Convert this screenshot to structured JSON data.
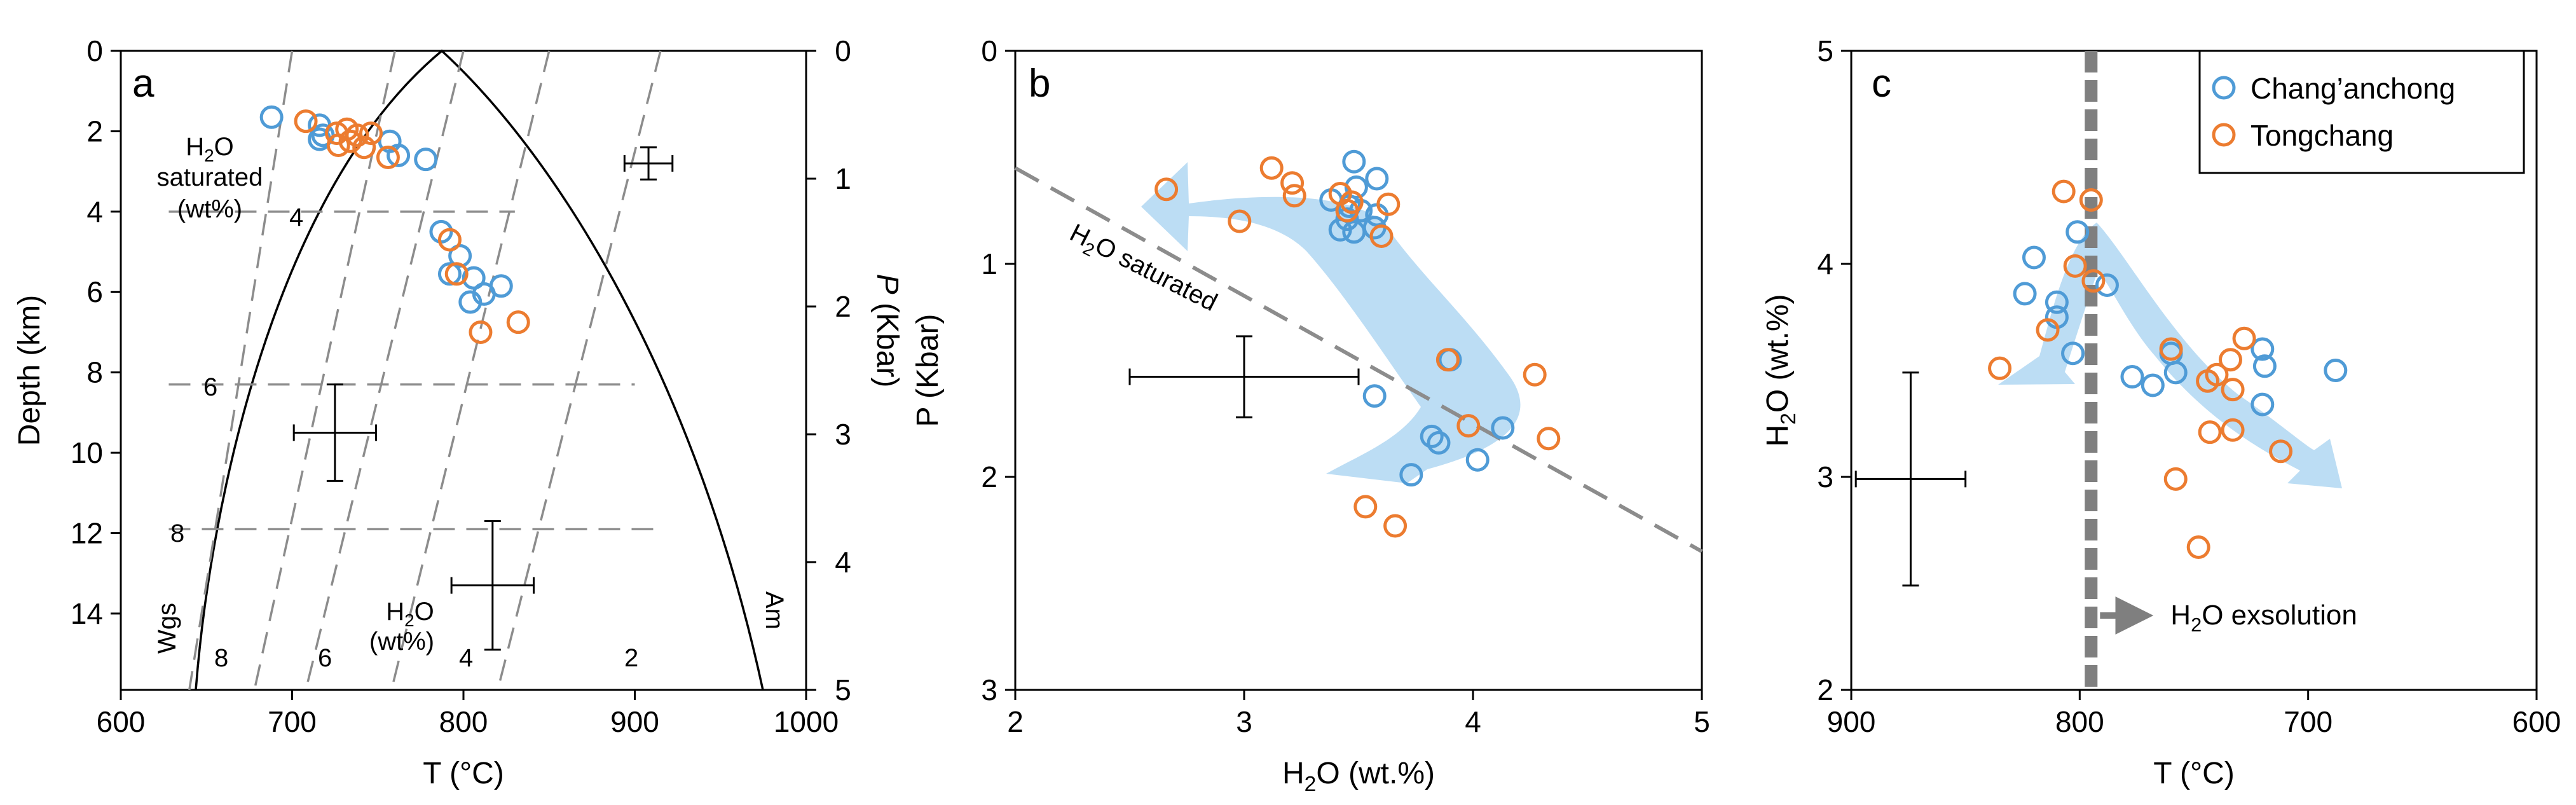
{
  "colors": {
    "blue": "#4F9BD6",
    "orange": "#EC7C30",
    "arrow": "#BCDDF4",
    "grey": "#8C8C8C"
  },
  "chart_data": [
    {
      "type": "scatter",
      "panel": "a",
      "xlabel": "T (°C)",
      "ylabel_left": "Depth (km)",
      "ylabel_right": [
        "P",
        " (Kbar)"
      ],
      "xlim": [
        600,
        1000
      ],
      "ylim_depth": [
        0,
        15.9
      ],
      "ylim_pressure": [
        0,
        5
      ],
      "x_ticks": [
        "600",
        "700",
        "800",
        "900",
        "1000"
      ],
      "y_ticks_left": [
        "0",
        "2",
        "4",
        "6",
        "8",
        "10",
        "12",
        "14"
      ],
      "y_ticks_right": [
        "0",
        "1",
        "2",
        "3",
        "4",
        "5"
      ],
      "annotations": {
        "h2o_saturated": [
          "H",
          "2",
          "O",
          "saturated",
          "(wt%)"
        ],
        "h2o_wt": [
          "H",
          "2",
          "O",
          "(wt%)"
        ],
        "wgs": "Wgs",
        "am": "Am",
        "iso_left": [
          "4",
          "6",
          "8"
        ],
        "iso_bottom": [
          "8",
          "6",
          "4",
          "2"
        ]
      },
      "isobars": [
        {
          "depth": 4.0,
          "x": [
            628,
            830
          ]
        },
        {
          "depth": 8.3,
          "x": [
            628,
            900
          ]
        },
        {
          "depth": 11.9,
          "x": [
            628,
            915
          ]
        }
      ],
      "isopleths": [
        {
          "x": [
            700,
            640
          ]
        },
        {
          "x": [
            760,
            678
          ]
        },
        {
          "x": [
            800,
            708
          ]
        },
        {
          "x": [
            850,
            758
          ]
        },
        {
          "x": [
            915,
            820
          ]
        }
      ],
      "error_bars": [
        {
          "x": 908,
          "y": 2.8,
          "dx": 14,
          "dy": 0.4
        },
        {
          "x": 725,
          "y": 9.5,
          "dx": 24,
          "dy": 1.2
        },
        {
          "x": 817,
          "y": 13.3,
          "dx": 24,
          "dy": 1.6
        }
      ],
      "series": [
        {
          "name": "Chang'anchong",
          "points": [
            [
              688,
              1.65
            ],
            [
              716,
              1.85
            ],
            [
              718,
              2.1
            ],
            [
              716,
              2.2
            ],
            [
              757,
              2.25
            ],
            [
              762,
              2.6
            ],
            [
              778,
              2.7
            ],
            [
              787,
              4.5
            ],
            [
              798,
              5.1
            ],
            [
              792,
              5.55
            ],
            [
              806,
              5.65
            ],
            [
              804,
              6.25
            ],
            [
              812,
              6.05
            ],
            [
              822,
              5.85
            ]
          ]
        },
        {
          "name": "Tongchang",
          "points": [
            [
              708,
              1.75
            ],
            [
              726,
              2.05
            ],
            [
              732,
              1.95
            ],
            [
              746,
              2.05
            ],
            [
              734,
              2.25
            ],
            [
              738,
              2.1
            ],
            [
              727,
              2.35
            ],
            [
              742,
              2.4
            ],
            [
              756,
              2.65
            ],
            [
              792,
              4.7
            ],
            [
              796,
              5.55
            ],
            [
              810,
              7.0
            ],
            [
              832,
              6.75
            ]
          ]
        }
      ]
    },
    {
      "type": "scatter",
      "panel": "b",
      "xlabel": [
        "H",
        "2",
        "O (wt.%)"
      ],
      "ylabel": "P (Kbar)",
      "xlim": [
        2,
        5
      ],
      "ylim": [
        3,
        0
      ],
      "x_ticks": [
        "2",
        "3",
        "4",
        "5"
      ],
      "y_ticks": [
        "0",
        "1",
        "2",
        "3"
      ],
      "annotations": {
        "h2o_saturated": [
          "H",
          "2",
          "O saturated"
        ]
      },
      "saturation_line": {
        "x": [
          2,
          5
        ],
        "y": [
          0.55,
          2.35
        ]
      },
      "error_bar": {
        "x": 3.0,
        "y": 1.53,
        "dx": 0.5,
        "dy": 0.19
      },
      "series": [
        {
          "name": "Chang'anchong",
          "points": [
            [
              3.48,
              0.52
            ],
            [
              3.58,
              0.6
            ],
            [
              3.49,
              0.64
            ],
            [
              3.38,
              0.7
            ],
            [
              3.46,
              0.73
            ],
            [
              3.45,
              0.79
            ],
            [
              3.51,
              0.75
            ],
            [
              3.58,
              0.77
            ],
            [
              3.42,
              0.84
            ],
            [
              3.48,
              0.85
            ],
            [
              3.57,
              0.83
            ],
            [
              3.9,
              1.45
            ],
            [
              3.57,
              1.62
            ],
            [
              3.82,
              1.81
            ],
            [
              3.85,
              1.84
            ],
            [
              4.13,
              1.77
            ],
            [
              4.02,
              1.92
            ],
            [
              3.73,
              1.99
            ]
          ]
        },
        {
          "name": "Tongchang",
          "points": [
            [
              2.66,
              0.65
            ],
            [
              3.12,
              0.55
            ],
            [
              3.21,
              0.62
            ],
            [
              3.22,
              0.68
            ],
            [
              3.42,
              0.67
            ],
            [
              3.47,
              0.71
            ],
            [
              3.45,
              0.75
            ],
            [
              3.63,
              0.72
            ],
            [
              2.98,
              0.8
            ],
            [
              3.6,
              0.87
            ],
            [
              3.89,
              1.45
            ],
            [
              4.27,
              1.52
            ],
            [
              3.98,
              1.76
            ],
            [
              4.33,
              1.82
            ],
            [
              3.53,
              2.14
            ],
            [
              3.66,
              2.23
            ]
          ]
        }
      ]
    },
    {
      "type": "scatter",
      "panel": "c",
      "xlabel": "T (°C)",
      "ylabel": [
        "H",
        "2",
        "O (wt.%)"
      ],
      "xlim": [
        900,
        600
      ],
      "ylim": [
        2,
        5
      ],
      "x_ticks": [
        "900",
        "800",
        "700",
        "600"
      ],
      "y_ticks": [
        "2",
        "3",
        "4",
        "5"
      ],
      "exsolution_T": 795,
      "annotations": {
        "exsolution": [
          "H",
          "2",
          "O exsolution"
        ]
      },
      "legend": {
        "position": "top-right",
        "entries": [
          "Chang’anchong",
          "Tongchang"
        ]
      },
      "error_bar": {
        "x": 874,
        "y": 2.99,
        "dx": 24,
        "dy": 0.5
      },
      "series": [
        {
          "name": "Chang'anchong",
          "points": [
            [
              820,
              4.03
            ],
            [
              824,
              3.86
            ],
            [
              810,
              3.82
            ],
            [
              810,
              3.75
            ],
            [
              803,
              3.58
            ],
            [
              801,
              4.15
            ],
            [
              788,
              3.9
            ],
            [
              777,
              3.47
            ],
            [
              768,
              3.43
            ],
            [
              760,
              3.58
            ],
            [
              758,
              3.49
            ],
            [
              720,
              3.6
            ],
            [
              719,
              3.52
            ],
            [
              720,
              3.34
            ],
            [
              688,
              3.5
            ]
          ]
        },
        {
          "name": "Tongchang",
          "points": [
            [
              835,
              3.51
            ],
            [
              807,
              4.34
            ],
            [
              814,
              3.69
            ],
            [
              802,
              3.99
            ],
            [
              795,
              4.3
            ],
            [
              794,
              3.92
            ],
            [
              760,
              3.6
            ],
            [
              744,
              3.45
            ],
            [
              743,
              3.21
            ],
            [
              740,
              3.48
            ],
            [
              733,
              3.22
            ],
            [
              733,
              3.41
            ],
            [
              734,
              3.55
            ],
            [
              728,
              3.65
            ],
            [
              712,
              3.12
            ],
            [
              758,
              2.99
            ],
            [
              748,
              2.67
            ]
          ]
        }
      ]
    }
  ]
}
